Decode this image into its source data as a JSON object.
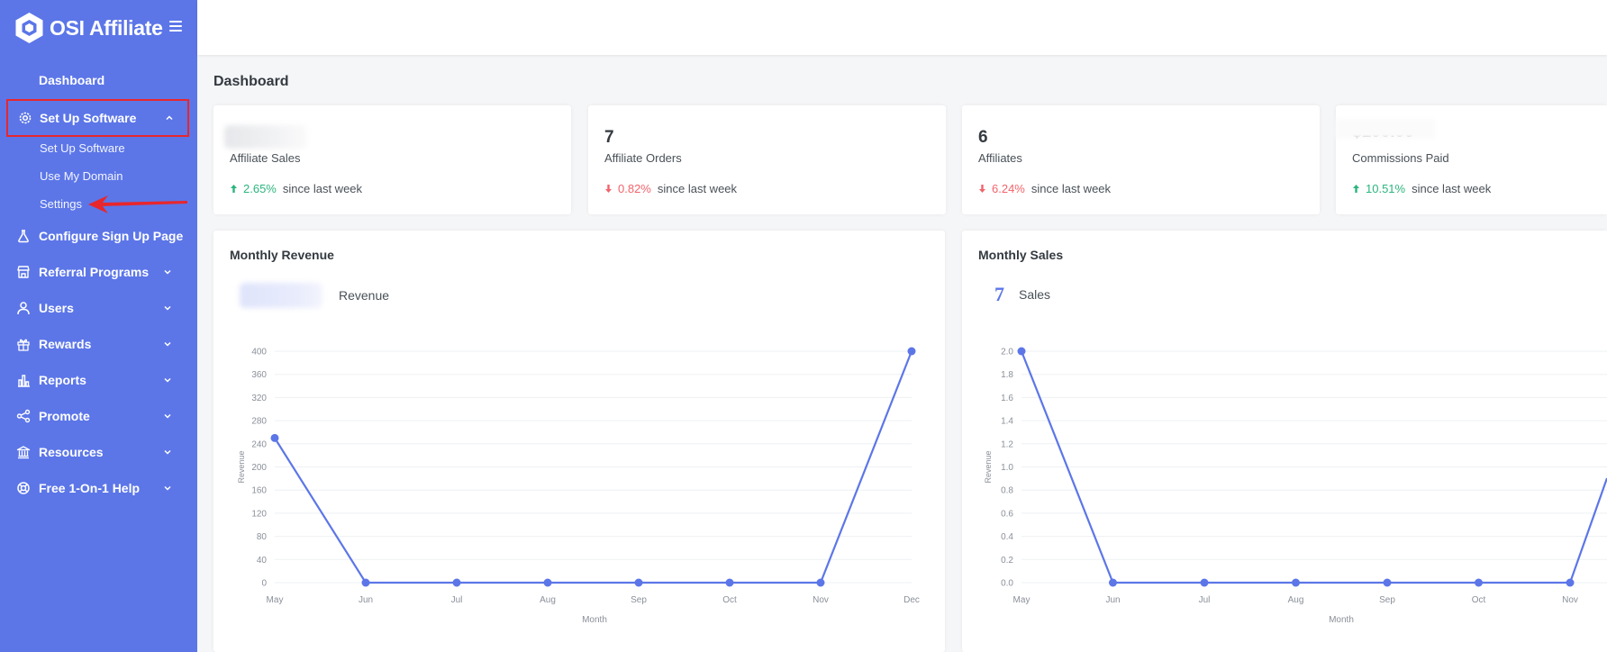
{
  "app": {
    "name": "OSI Affiliate"
  },
  "colors": {
    "sidebar": "#5c76e8",
    "accent": "#5c76e8",
    "up": "#2cb57e",
    "down": "#f1646c",
    "highlight": "#e8262c"
  },
  "sidebar": {
    "items": [
      {
        "label": "Dashboard",
        "icon": "none",
        "chevron": false
      },
      {
        "label": "Set Up Software",
        "icon": "gear-icon",
        "chevron": "up",
        "active": true,
        "subitems": [
          "Set Up Software",
          "Use My Domain",
          "Settings"
        ]
      },
      {
        "label": "Configure Sign Up Page",
        "icon": "flask-icon",
        "chevron": false
      },
      {
        "label": "Referral Programs",
        "icon": "store-icon",
        "chevron": "down"
      },
      {
        "label": "Users",
        "icon": "user-icon",
        "chevron": "down"
      },
      {
        "label": "Rewards",
        "icon": "gift-icon",
        "chevron": "down"
      },
      {
        "label": "Reports",
        "icon": "bar-chart-icon",
        "chevron": "down"
      },
      {
        "label": "Promote",
        "icon": "share-icon",
        "chevron": "down"
      },
      {
        "label": "Resources",
        "icon": "bank-icon",
        "chevron": "down"
      },
      {
        "label": "Free 1-On-1 Help",
        "icon": "lifebuoy-icon",
        "chevron": "down"
      }
    ]
  },
  "page": {
    "title": "Dashboard"
  },
  "stats": [
    {
      "value": "",
      "label": "Affiliate Sales",
      "change": "2.65%",
      "direction": "up",
      "since": "since last week"
    },
    {
      "value": "7",
      "label": "Affiliate Orders",
      "change": "0.82%",
      "direction": "down",
      "since": "since last week"
    },
    {
      "value": "6",
      "label": "Affiliates",
      "change": "6.24%",
      "direction": "down",
      "since": "since last week"
    },
    {
      "value": "$100.00",
      "label": "Commissions Paid",
      "change": "10.51%",
      "direction": "up",
      "since": "since last week"
    }
  ],
  "charts": {
    "revenue": {
      "title": "Monthly Revenue",
      "summary_value": "",
      "summary_label": "Revenue"
    },
    "sales": {
      "title": "Monthly Sales",
      "summary_value": "7",
      "summary_label": "Sales"
    }
  },
  "chart_data": [
    {
      "type": "line",
      "title": "Monthly Revenue",
      "xlabel": "Month",
      "ylabel": "Revenue",
      "categories": [
        "May",
        "Jun",
        "Jul",
        "Aug",
        "Sep",
        "Oct",
        "Nov",
        "Dec"
      ],
      "ylim": [
        0,
        400
      ],
      "yticks": [
        0,
        40,
        80,
        120,
        160,
        200,
        240,
        280,
        320,
        360,
        400
      ],
      "values": [
        250,
        0,
        0,
        0,
        0,
        0,
        0,
        400
      ],
      "color": "#5c76e8",
      "grid": true
    },
    {
      "type": "line",
      "title": "Monthly Sales",
      "xlabel": "Month",
      "ylabel": "Revenue",
      "categories": [
        "May",
        "Jun",
        "Jul",
        "Aug",
        "Sep",
        "Oct",
        "Nov"
      ],
      "ylim": [
        0,
        2
      ],
      "yticks": [
        "0.0",
        "0.2",
        "0.4",
        "0.6",
        "0.8",
        "1.0",
        "1.2",
        "1.4",
        "1.6",
        "1.8",
        "2.0"
      ],
      "values": [
        2,
        0,
        0,
        0,
        0,
        0,
        0
      ],
      "color": "#5c76e8",
      "grid": true
    }
  ]
}
